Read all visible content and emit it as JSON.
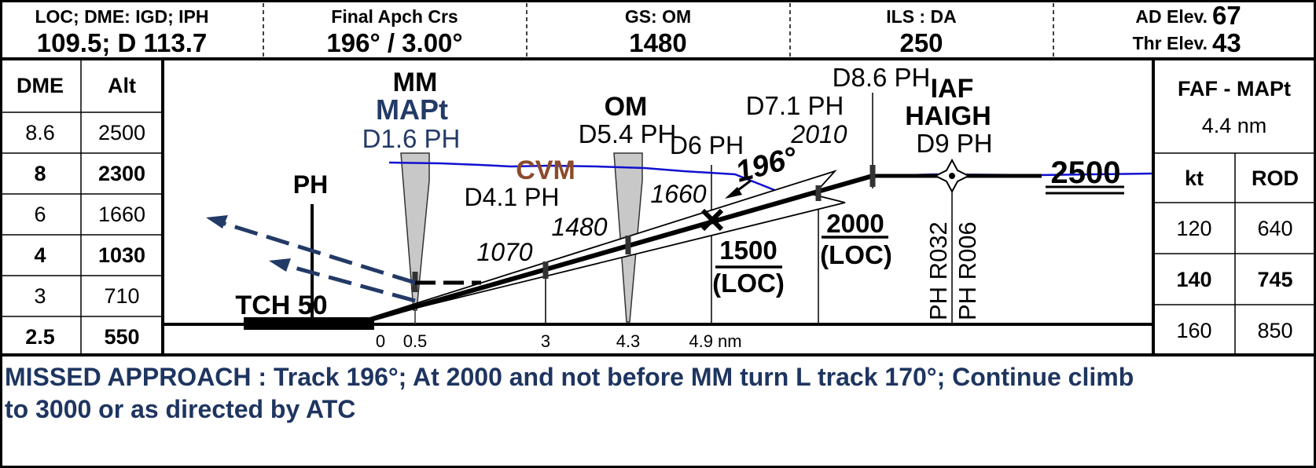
{
  "header": {
    "cells": [
      {
        "label": "LOC; DME: IGD; IPH",
        "value": "109.5; D 113.7"
      },
      {
        "label": "Final Apch Crs",
        "value": "196° / 3.00°"
      },
      {
        "label": "GS: OM",
        "value": "1480"
      },
      {
        "label": "ILS : DA",
        "value": "250"
      }
    ],
    "elev": [
      {
        "label": "AD Elev.",
        "value": "67"
      },
      {
        "label": "Thr Elev.",
        "value": "43"
      }
    ]
  },
  "dme_table": {
    "headers": [
      "DME",
      "Alt"
    ],
    "rows": [
      {
        "dme": "8.6",
        "alt": "2500",
        "bold": false
      },
      {
        "dme": "8",
        "alt": "2300",
        "bold": true
      },
      {
        "dme": "6",
        "alt": "1660",
        "bold": false
      },
      {
        "dme": "4",
        "alt": "1030",
        "bold": true
      },
      {
        "dme": "3",
        "alt": "710",
        "bold": false
      },
      {
        "dme": "2.5",
        "alt": "550",
        "bold": true
      }
    ]
  },
  "rod_table": {
    "title": "FAF - MAPt",
    "distance": "4.4 nm",
    "headers": [
      "kt",
      "ROD"
    ],
    "rows": [
      {
        "kt": "120",
        "rod": "640",
        "bold": false
      },
      {
        "kt": "140",
        "rod": "745",
        "bold": true
      },
      {
        "kt": "160",
        "rod": "850",
        "bold": false
      }
    ]
  },
  "profile": {
    "tch": "TCH 50",
    "ph": "PH",
    "mm": "MM",
    "mapt": "MAPt",
    "d16": "D1.6 PH",
    "om": "OM",
    "d54": "D5.4 PH",
    "cvm": "CVM",
    "d41": "D4.1 PH",
    "d6": "D6 PH",
    "d71": "D7.1 PH",
    "d86": "D8.6 PH",
    "iaf": "IAF",
    "haigh": "HAIGH",
    "d9": "D9 PH",
    "course": "196°",
    "alt1070": "1070",
    "alt1480": "1480",
    "alt1660": "1660",
    "alt2010": "2010",
    "alt1500": "1500",
    "loc1": "(LOC)",
    "alt2000": "2000",
    "loc2": "(LOC)",
    "alt2500": "2500",
    "r032": "PH R032",
    "r006": "PH R006",
    "ticks": [
      "0",
      "0.5",
      "3",
      "4.3",
      "4.9 nm"
    ]
  },
  "missed_approach": {
    "line1": "MISSED APPROACH : Track 196°; At 2000 and not before MM turn L track 170°; Continue climb",
    "line2": "to 3000 or as directed by ATC"
  },
  "colors": {
    "terrain": "#1010d0",
    "navy": "#223a66",
    "cvm": "#8b4a2b",
    "marker": "#c8c8c8"
  }
}
